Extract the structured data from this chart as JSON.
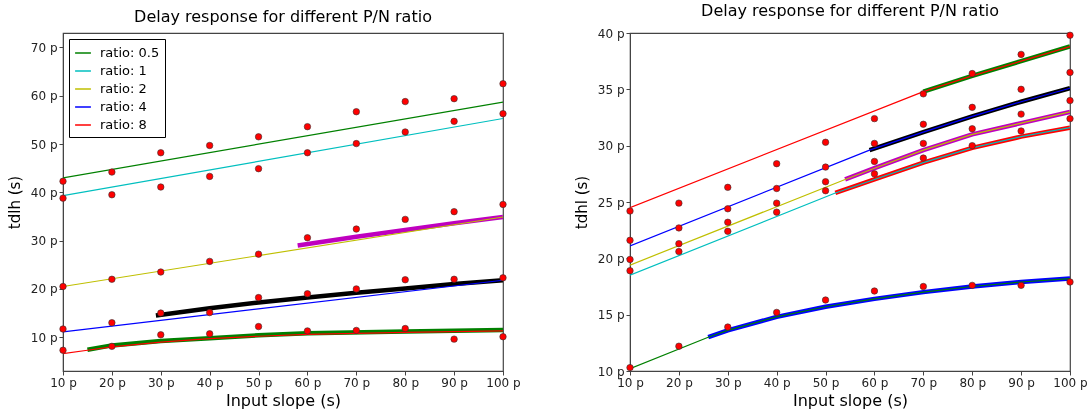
{
  "chart_data": [
    {
      "type": "line",
      "title": "Delay response for different P/N ratio",
      "xlabel": "Input slope (s)",
      "ylabel": "tdlh (s)",
      "legend": "top left",
      "xlim": [
        10,
        100
      ],
      "ylim": [
        3,
        73
      ],
      "xticks": [
        {
          "value": 10,
          "label": "10 p"
        },
        {
          "value": 20,
          "label": "20 p"
        },
        {
          "value": 30,
          "label": "30 p"
        },
        {
          "value": 40,
          "label": "40 p"
        },
        {
          "value": 50,
          "label": "50 p"
        },
        {
          "value": 60,
          "label": "60 p"
        },
        {
          "value": 70,
          "label": "70 p"
        },
        {
          "value": 80,
          "label": "80 p"
        },
        {
          "value": 90,
          "label": "90 p"
        },
        {
          "value": 100,
          "label": "100 p"
        }
      ],
      "yticks": [
        {
          "value": 10,
          "label": "10 p"
        },
        {
          "value": 20,
          "label": "20 p"
        },
        {
          "value": 30,
          "label": "30 p"
        },
        {
          "value": 40,
          "label": "40 p"
        },
        {
          "value": 50,
          "label": "50 p"
        },
        {
          "value": 60,
          "label": "60 p"
        },
        {
          "value": 70,
          "label": "70 p"
        }
      ],
      "series": [
        {
          "color": "#bf00bf",
          "x": [
            58,
            70,
            80,
            90,
            100
          ],
          "values": [
            29.0,
            30.8,
            32.2,
            33.6,
            34.9
          ]
        },
        {
          "color": "#000000",
          "x": [
            29,
            40,
            50,
            60,
            70,
            80,
            90,
            100
          ],
          "values": [
            14.5,
            16.0,
            17.2,
            18.2,
            19.2,
            20.1,
            21.0,
            21.8
          ]
        },
        {
          "color": "#008000",
          "x": [
            15,
            20,
            30,
            40,
            50,
            60,
            80,
            100
          ],
          "values": [
            7.4,
            8.3,
            9.2,
            9.8,
            10.4,
            10.8,
            11.2,
            11.5
          ]
        },
        {
          "name": "ratio: 0.5",
          "color": "#008000",
          "x": [
            10,
            100
          ],
          "values": [
            43.0,
            58.7
          ]
        },
        {
          "name": "ratio: 1",
          "color": "#00bfbf",
          "x": [
            10,
            100
          ],
          "values": [
            39.3,
            55.3
          ]
        },
        {
          "name": "ratio: 2",
          "color": "#bfbf00",
          "x": [
            10,
            100
          ],
          "values": [
            20.5,
            34.9
          ]
        },
        {
          "name": "ratio: 4",
          "color": "#0000ff",
          "x": [
            10,
            100
          ],
          "values": [
            11.1,
            21.8
          ]
        },
        {
          "name": "ratio: 8",
          "color": "#ff0000",
          "x": [
            10,
            15,
            20,
            30,
            40,
            50,
            60,
            80,
            100
          ],
          "values": [
            6.6,
            7.3,
            8.0,
            9.0,
            9.7,
            10.2,
            10.6,
            11.0,
            11.3
          ]
        },
        {
          "type": "scatter",
          "marker": "circle",
          "color": "#ff0000",
          "x": [
            10,
            10,
            10,
            10,
            10,
            20,
            20,
            20,
            20,
            20,
            30,
            30,
            30,
            30,
            30,
            40,
            40,
            40,
            40,
            40,
            50,
            50,
            50,
            50,
            50,
            60,
            60,
            60,
            60,
            60,
            70,
            70,
            70,
            70,
            70,
            80,
            80,
            80,
            80,
            80,
            90,
            90,
            90,
            90,
            90,
            100,
            100,
            100,
            100,
            100
          ],
          "values": [
            42.3,
            38.8,
            20.5,
            11.7,
            7.3,
            44.2,
            39.5,
            22.0,
            13.0,
            8.1,
            48.2,
            41.1,
            23.5,
            15.0,
            10.5,
            49.7,
            43.3,
            25.7,
            15.1,
            10.7,
            51.5,
            44.9,
            27.2,
            18.2,
            12.2,
            53.6,
            48.2,
            30.6,
            19.0,
            11.3,
            56.7,
            50.1,
            32.4,
            20.0,
            11.4,
            58.8,
            52.5,
            34.4,
            21.9,
            11.8,
            59.4,
            54.7,
            36.0,
            22.0,
            9.6,
            62.5,
            56.3,
            37.5,
            22.3,
            10.1
          ]
        }
      ]
    },
    {
      "type": "line",
      "title": "Delay response for different P/N ratio",
      "xlabel": "Input slope (s)",
      "ylabel": "tdhl (s)",
      "legend": "top left",
      "xlim": [
        10,
        100
      ],
      "ylim": [
        10,
        40
      ],
      "xticks": [
        {
          "value": 10,
          "label": "10 p"
        },
        {
          "value": 20,
          "label": "20 p"
        },
        {
          "value": 30,
          "label": "30 p"
        },
        {
          "value": 40,
          "label": "40 p"
        },
        {
          "value": 50,
          "label": "50 p"
        },
        {
          "value": 60,
          "label": "60 p"
        },
        {
          "value": 70,
          "label": "70 p"
        },
        {
          "value": 80,
          "label": "80 p"
        },
        {
          "value": 90,
          "label": "90 p"
        },
        {
          "value": 100,
          "label": "100 p"
        }
      ],
      "yticks": [
        {
          "value": 10,
          "label": "10 p"
        },
        {
          "value": 15,
          "label": "15 p"
        },
        {
          "value": 20,
          "label": "20 p"
        },
        {
          "value": 25,
          "label": "25 p"
        },
        {
          "value": 30,
          "label": "30 p"
        },
        {
          "value": 35,
          "label": "35 p"
        },
        {
          "value": 40,
          "label": "40 p"
        }
      ],
      "series": [
        {
          "color": "#008000",
          "x": [
            70,
            80,
            90,
            100
          ],
          "values": [
            34.8,
            36.2,
            37.5,
            38.8
          ]
        },
        {
          "color": "#000000",
          "x": [
            59,
            70,
            80,
            90,
            100
          ],
          "values": [
            29.6,
            31.2,
            32.6,
            33.9,
            35.1
          ]
        },
        {
          "color": "#bf00bf",
          "x": [
            54,
            60,
            70,
            80,
            90,
            100
          ],
          "values": [
            27.0,
            28.0,
            29.6,
            31.0,
            32.0,
            33.0
          ]
        },
        {
          "color": "#ff0000",
          "x": [
            52,
            60,
            70,
            80,
            90,
            100
          ],
          "values": [
            25.8,
            27.0,
            28.5,
            29.8,
            30.8,
            31.6
          ]
        },
        {
          "color": "#0000ff",
          "x": [
            26,
            30,
            40,
            50,
            60,
            70,
            80,
            90,
            100
          ],
          "values": [
            13.0,
            13.6,
            14.8,
            15.7,
            16.4,
            17.0,
            17.5,
            17.9,
            18.2
          ]
        },
        {
          "name": "ratio: 0.5",
          "color": "#008000",
          "x": [
            10,
            26,
            30,
            40,
            50,
            60,
            70,
            80,
            90,
            100
          ],
          "values": [
            10.2,
            13.0,
            13.6,
            14.8,
            15.7,
            16.4,
            17.0,
            17.5,
            17.9,
            18.2
          ]
        },
        {
          "name": "ratio: 1",
          "color": "#00bfbf",
          "x": [
            10,
            52,
            60,
            70,
            80,
            90,
            100
          ],
          "values": [
            18.5,
            25.8,
            27.0,
            28.5,
            29.8,
            30.8,
            31.6
          ]
        },
        {
          "name": "ratio: 2",
          "color": "#bfbf00",
          "x": [
            10,
            54,
            60,
            70,
            80,
            90,
            100
          ],
          "values": [
            19.4,
            27.0,
            28.0,
            29.6,
            31.0,
            32.0,
            33.0
          ]
        },
        {
          "name": "ratio: 4",
          "color": "#0000ff",
          "x": [
            10,
            59,
            70,
            80,
            90,
            100
          ],
          "values": [
            21.1,
            29.6,
            31.2,
            32.6,
            33.9,
            35.1
          ]
        },
        {
          "name": "ratio: 8",
          "color": "#ff0000",
          "x": [
            10,
            70,
            80,
            90,
            100
          ],
          "values": [
            24.5,
            34.8,
            36.2,
            37.5,
            38.8
          ]
        },
        {
          "type": "scatter",
          "marker": "circle",
          "color": "#ff0000",
          "x": [
            10,
            10,
            10,
            10,
            10,
            20,
            20,
            20,
            20,
            20,
            30,
            30,
            30,
            30,
            30,
            40,
            40,
            40,
            40,
            40,
            50,
            50,
            50,
            50,
            50,
            60,
            60,
            60,
            60,
            60,
            70,
            70,
            70,
            70,
            70,
            80,
            80,
            80,
            80,
            80,
            90,
            90,
            90,
            90,
            90,
            100,
            100,
            100,
            100,
            100
          ],
          "values": [
            24.2,
            21.6,
            19.9,
            18.9,
            10.3,
            24.9,
            22.7,
            21.3,
            20.6,
            12.2,
            26.3,
            24.4,
            23.2,
            22.4,
            13.9,
            28.4,
            26.2,
            24.9,
            24.1,
            15.2,
            30.3,
            28.1,
            26.8,
            26.0,
            16.3,
            32.4,
            30.2,
            28.6,
            27.5,
            17.1,
            34.6,
            31.9,
            30.2,
            28.9,
            17.5,
            36.4,
            33.4,
            31.5,
            30.0,
            17.6,
            38.1,
            35.0,
            32.8,
            31.3,
            17.6,
            39.8,
            36.5,
            34.0,
            32.4,
            17.9
          ]
        }
      ]
    }
  ]
}
